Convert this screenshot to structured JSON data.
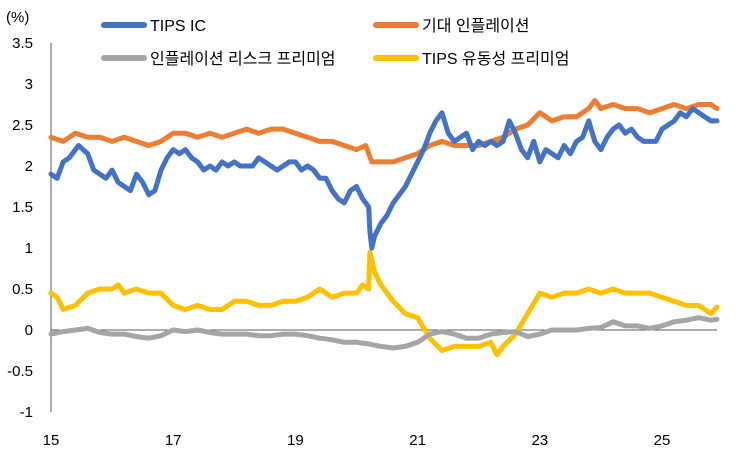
{
  "chart_data": {
    "type": "line",
    "unit_label": "(%)",
    "xlabel": "",
    "ylabel": "",
    "xlim": [
      15,
      25.9
    ],
    "ylim": [
      -1,
      3.5
    ],
    "x_ticks": [
      15,
      17,
      19,
      21,
      23,
      25
    ],
    "y_ticks": [
      3.5,
      3,
      2.5,
      2,
      1.5,
      1,
      0.5,
      0,
      -0.5,
      -1
    ],
    "legend": {
      "placement": "top",
      "columns": 2
    },
    "series": [
      {
        "name": "TIPS IC",
        "color": "#4472C4",
        "x": [
          15.0,
          15.1,
          15.2,
          15.3,
          15.45,
          15.6,
          15.7,
          15.8,
          15.9,
          16.0,
          16.1,
          16.2,
          16.3,
          16.4,
          16.5,
          16.6,
          16.7,
          16.8,
          16.9,
          17.0,
          17.1,
          17.2,
          17.3,
          17.4,
          17.5,
          17.6,
          17.7,
          17.8,
          17.9,
          18.0,
          18.1,
          18.2,
          18.3,
          18.4,
          18.5,
          18.6,
          18.7,
          18.8,
          18.9,
          19.0,
          19.1,
          19.2,
          19.3,
          19.4,
          19.5,
          19.6,
          19.7,
          19.8,
          19.9,
          20.0,
          20.1,
          20.2,
          20.22,
          20.25,
          20.3,
          20.4,
          20.5,
          20.6,
          20.7,
          20.8,
          20.9,
          21.0,
          21.1,
          21.2,
          21.3,
          21.4,
          21.5,
          21.6,
          21.7,
          21.8,
          21.9,
          22.0,
          22.1,
          22.2,
          22.3,
          22.4,
          22.5,
          22.6,
          22.7,
          22.8,
          22.9,
          23.0,
          23.1,
          23.2,
          23.3,
          23.4,
          23.5,
          23.6,
          23.7,
          23.8,
          23.9,
          24.0,
          24.1,
          24.2,
          24.3,
          24.4,
          24.5,
          24.6,
          24.7,
          24.8,
          24.9,
          25.0,
          25.1,
          25.2,
          25.3,
          25.4,
          25.5,
          25.6,
          25.7,
          25.8,
          25.9
        ],
        "values": [
          1.9,
          1.85,
          2.05,
          2.1,
          2.25,
          2.15,
          1.95,
          1.9,
          1.85,
          1.95,
          1.8,
          1.75,
          1.7,
          1.9,
          1.8,
          1.65,
          1.7,
          1.95,
          2.1,
          2.2,
          2.15,
          2.2,
          2.1,
          2.05,
          1.95,
          2.0,
          1.95,
          2.05,
          2.0,
          2.05,
          2.0,
          2.0,
          2.0,
          2.1,
          2.05,
          2.0,
          1.95,
          2.0,
          2.05,
          2.05,
          1.95,
          2.0,
          1.95,
          1.85,
          1.85,
          1.7,
          1.6,
          1.55,
          1.7,
          1.75,
          1.6,
          1.5,
          1.2,
          1.0,
          1.15,
          1.3,
          1.4,
          1.55,
          1.65,
          1.75,
          1.9,
          2.05,
          2.2,
          2.4,
          2.55,
          2.65,
          2.4,
          2.3,
          2.35,
          2.4,
          2.2,
          2.3,
          2.25,
          2.3,
          2.25,
          2.3,
          2.55,
          2.4,
          2.2,
          2.1,
          2.3,
          2.05,
          2.2,
          2.15,
          2.1,
          2.25,
          2.15,
          2.3,
          2.35,
          2.55,
          2.3,
          2.2,
          2.35,
          2.45,
          2.5,
          2.4,
          2.45,
          2.35,
          2.3,
          2.3,
          2.3,
          2.45,
          2.5,
          2.55,
          2.65,
          2.6,
          2.7,
          2.65,
          2.6,
          2.55,
          2.55
        ]
      },
      {
        "name": "기대 인플레이션",
        "color": "#ED7D31",
        "x": [
          15.0,
          15.2,
          15.4,
          15.6,
          15.8,
          16.0,
          16.2,
          16.4,
          16.6,
          16.8,
          17.0,
          17.2,
          17.4,
          17.6,
          17.8,
          18.0,
          18.2,
          18.4,
          18.6,
          18.8,
          19.0,
          19.2,
          19.4,
          19.6,
          19.8,
          20.0,
          20.15,
          20.25,
          20.4,
          20.6,
          20.8,
          21.0,
          21.2,
          21.4,
          21.6,
          21.8,
          22.0,
          22.2,
          22.4,
          22.6,
          22.8,
          23.0,
          23.2,
          23.4,
          23.6,
          23.8,
          23.9,
          24.0,
          24.2,
          24.4,
          24.6,
          24.8,
          25.0,
          25.2,
          25.4,
          25.6,
          25.8,
          25.9
        ],
        "values": [
          2.35,
          2.3,
          2.4,
          2.35,
          2.35,
          2.3,
          2.35,
          2.3,
          2.25,
          2.3,
          2.4,
          2.4,
          2.35,
          2.4,
          2.35,
          2.4,
          2.45,
          2.4,
          2.45,
          2.45,
          2.4,
          2.35,
          2.3,
          2.3,
          2.25,
          2.2,
          2.25,
          2.05,
          2.05,
          2.05,
          2.1,
          2.15,
          2.25,
          2.3,
          2.25,
          2.25,
          2.25,
          2.3,
          2.35,
          2.45,
          2.5,
          2.65,
          2.55,
          2.6,
          2.6,
          2.7,
          2.8,
          2.7,
          2.75,
          2.7,
          2.7,
          2.65,
          2.7,
          2.75,
          2.7,
          2.75,
          2.75,
          2.7
        ]
      },
      {
        "name": "인플레이션 리스크 프리미엄",
        "color": "#A5A5A5",
        "x": [
          15.0,
          15.2,
          15.4,
          15.6,
          15.8,
          16.0,
          16.2,
          16.4,
          16.6,
          16.8,
          17.0,
          17.2,
          17.4,
          17.6,
          17.8,
          18.0,
          18.2,
          18.4,
          18.6,
          18.8,
          19.0,
          19.2,
          19.4,
          19.6,
          19.8,
          20.0,
          20.2,
          20.4,
          20.6,
          20.8,
          21.0,
          21.2,
          21.4,
          21.6,
          21.8,
          22.0,
          22.2,
          22.4,
          22.6,
          22.8,
          23.0,
          23.2,
          23.4,
          23.6,
          23.8,
          24.0,
          24.2,
          24.4,
          24.6,
          24.8,
          25.0,
          25.2,
          25.4,
          25.6,
          25.8,
          25.9
        ],
        "values": [
          -0.05,
          -0.02,
          0.0,
          0.02,
          -0.03,
          -0.05,
          -0.05,
          -0.08,
          -0.1,
          -0.07,
          0.0,
          -0.02,
          0.0,
          -0.03,
          -0.05,
          -0.05,
          -0.05,
          -0.07,
          -0.07,
          -0.05,
          -0.05,
          -0.07,
          -0.1,
          -0.12,
          -0.15,
          -0.15,
          -0.17,
          -0.2,
          -0.22,
          -0.2,
          -0.15,
          -0.05,
          -0.02,
          -0.05,
          -0.1,
          -0.1,
          -0.05,
          -0.03,
          -0.02,
          -0.08,
          -0.05,
          0.0,
          0.0,
          0.0,
          0.02,
          0.03,
          0.1,
          0.05,
          0.05,
          0.02,
          0.05,
          0.1,
          0.12,
          0.15,
          0.12,
          0.13
        ]
      },
      {
        "name": "TIPS 유동성 프리미엄",
        "color": "#FFC000",
        "x": [
          15.0,
          15.1,
          15.2,
          15.4,
          15.6,
          15.8,
          16.0,
          16.1,
          16.2,
          16.4,
          16.6,
          16.8,
          17.0,
          17.2,
          17.4,
          17.6,
          17.8,
          18.0,
          18.2,
          18.4,
          18.6,
          18.8,
          19.0,
          19.2,
          19.4,
          19.6,
          19.8,
          20.0,
          20.1,
          20.2,
          20.22,
          20.3,
          20.4,
          20.6,
          20.8,
          21.0,
          21.2,
          21.4,
          21.6,
          21.8,
          22.0,
          22.2,
          22.3,
          22.4,
          22.6,
          22.8,
          23.0,
          23.2,
          23.4,
          23.6,
          23.8,
          24.0,
          24.2,
          24.4,
          24.6,
          24.8,
          25.0,
          25.2,
          25.4,
          25.6,
          25.8,
          25.9
        ],
        "values": [
          0.45,
          0.4,
          0.25,
          0.3,
          0.45,
          0.5,
          0.5,
          0.55,
          0.45,
          0.5,
          0.45,
          0.45,
          0.3,
          0.25,
          0.3,
          0.25,
          0.25,
          0.35,
          0.35,
          0.3,
          0.3,
          0.35,
          0.35,
          0.4,
          0.5,
          0.4,
          0.45,
          0.45,
          0.55,
          0.5,
          0.95,
          0.7,
          0.55,
          0.35,
          0.2,
          0.15,
          -0.1,
          -0.25,
          -0.2,
          -0.2,
          -0.2,
          -0.15,
          -0.3,
          -0.2,
          -0.05,
          0.2,
          0.45,
          0.4,
          0.45,
          0.45,
          0.5,
          0.45,
          0.5,
          0.45,
          0.45,
          0.45,
          0.4,
          0.35,
          0.3,
          0.3,
          0.2,
          0.28
        ]
      }
    ]
  }
}
